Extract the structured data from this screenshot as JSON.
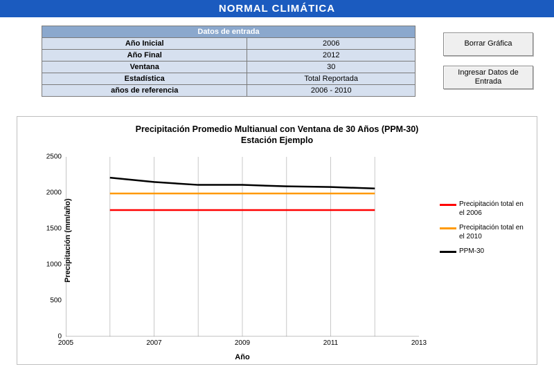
{
  "header": {
    "title": "NORMAL CLIMÁTICA"
  },
  "input_table": {
    "title": "Datos de entrada",
    "rows": [
      {
        "label": "Año Inicial",
        "value": "2006"
      },
      {
        "label": "Año Final",
        "value": "2012"
      },
      {
        "label": "Ventana",
        "value": "30"
      },
      {
        "label": "Estadística",
        "value": "Total Reportada"
      },
      {
        "label": "años de referencia",
        "value": "2006 - 2010"
      }
    ],
    "header_bg": "#8ba8cd",
    "cell_bg": "#d6e0ef",
    "border_color": "#7a7a7a"
  },
  "buttons": {
    "clear": "Borrar Gráfica",
    "enter": "Ingresar Datos de Entrada"
  },
  "chart": {
    "type": "line",
    "title_line1": "Precipitación Promedio Multianual con Ventana de 30 Años (PPM-30)",
    "title_line2": "Estación Ejemplo",
    "x_label": "Año",
    "y_label": "Precipitación (mm/año)",
    "xlim": [
      2005,
      2013
    ],
    "ylim": [
      0,
      2500
    ],
    "xticks": [
      2005,
      2007,
      2009,
      2011,
      2013
    ],
    "yticks": [
      0,
      500,
      1000,
      1500,
      2000,
      2500
    ],
    "background_color": "#ffffff",
    "grid_color": "#c8c8c8",
    "border_color": "#bfbfbf",
    "title_fontsize": 12.5,
    "label_fontsize": 11,
    "tick_fontsize": 10,
    "line_width": 2.5,
    "vgrid_at_data_x": true,
    "series": [
      {
        "name": "Precipitación total en el 2006",
        "color": "#ff0000",
        "x": [
          2006,
          2007,
          2008,
          2009,
          2010,
          2011,
          2012
        ],
        "y": [
          1760,
          1760,
          1760,
          1760,
          1760,
          1760,
          1760
        ]
      },
      {
        "name": "Precipitación total en el 2010",
        "color": "#ff9900",
        "x": [
          2006,
          2007,
          2008,
          2009,
          2010,
          2011,
          2012
        ],
        "y": [
          1990,
          1990,
          1990,
          1990,
          1990,
          1990,
          1990
        ]
      },
      {
        "name": "PPM-30",
        "color": "#000000",
        "x": [
          2006,
          2007,
          2008,
          2009,
          2010,
          2011,
          2012
        ],
        "y": [
          2210,
          2150,
          2110,
          2110,
          2090,
          2080,
          2060
        ]
      }
    ],
    "legend_position": "right"
  }
}
